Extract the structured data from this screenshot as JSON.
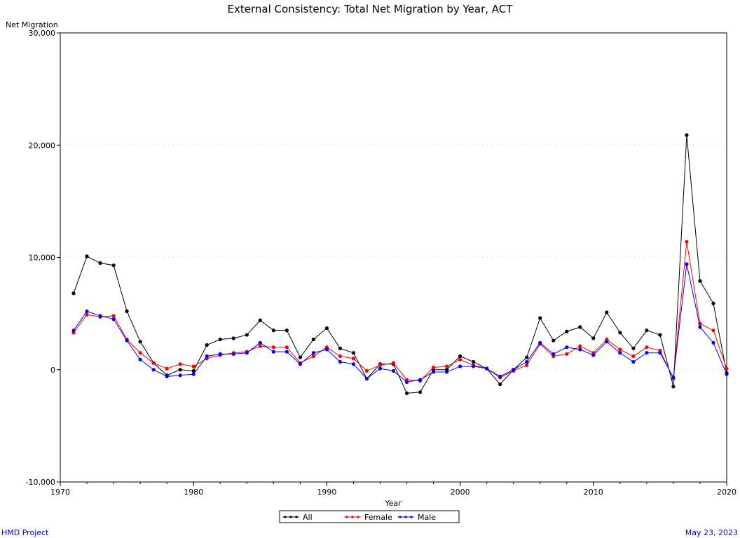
{
  "chart_data": {
    "type": "line",
    "title": "External Consistency: Total Net Migration by Year, ACT",
    "xlabel": "Year",
    "ylabel": "Net Migration",
    "xlim": [
      1970,
      2020
    ],
    "ylim": [
      -10000,
      30000
    ],
    "xticks": [
      1970,
      1980,
      1990,
      2000,
      2010,
      2020
    ],
    "xtick_labels": [
      "1970",
      "1980",
      "1990",
      "2000",
      "2010",
      "2020"
    ],
    "yticks": [
      -10000,
      0,
      10000,
      20000,
      30000
    ],
    "ytick_labels": [
      "-10,000",
      "0",
      "10,000",
      "20,000",
      "30,000"
    ],
    "grid": "dotted horizontal at major y ticks",
    "legend_position": "bottom-center",
    "x": [
      1971,
      1972,
      1973,
      1974,
      1975,
      1976,
      1977,
      1978,
      1979,
      1980,
      1981,
      1982,
      1983,
      1984,
      1985,
      1986,
      1987,
      1988,
      1989,
      1990,
      1991,
      1992,
      1993,
      1994,
      1995,
      1996,
      1997,
      1998,
      1999,
      2000,
      2001,
      2002,
      2003,
      2004,
      2005,
      2006,
      2007,
      2008,
      2009,
      2010,
      2011,
      2012,
      2013,
      2014,
      2015,
      2016,
      2017,
      2018,
      2019,
      2020
    ],
    "series": [
      {
        "name": "All",
        "color": "#000000",
        "values": [
          6800,
          10100,
          9500,
          9300,
          5200,
          2500,
          600,
          -500,
          0,
          -100,
          2200,
          2700,
          2800,
          3100,
          4400,
          3500,
          3500,
          1100,
          2700,
          3700,
          1900,
          1500,
          -800,
          500,
          500,
          -2100,
          -2000,
          0,
          0,
          1200,
          700,
          100,
          -1300,
          0,
          1100,
          4600,
          2600,
          3400,
          3800,
          2800,
          5100,
          3300,
          1900,
          3500,
          3100,
          -1500,
          20900,
          7900,
          5900,
          -300
        ]
      },
      {
        "name": "Female",
        "color": "#ff0000",
        "values": [
          3300,
          4900,
          4700,
          4800,
          2700,
          1500,
          600,
          100,
          500,
          300,
          1000,
          1300,
          1500,
          1600,
          2100,
          2000,
          2000,
          600,
          1200,
          2000,
          1200,
          1000,
          -100,
          400,
          600,
          -900,
          -1000,
          200,
          300,
          900,
          400,
          100,
          -700,
          -100,
          400,
          2300,
          1200,
          1400,
          2100,
          1500,
          2700,
          1800,
          1200,
          2000,
          1700,
          -800,
          11400,
          4100,
          3500,
          100
        ]
      },
      {
        "name": "Male",
        "color": "#0000ff",
        "values": [
          3500,
          5200,
          4800,
          4500,
          2600,
          900,
          0,
          -600,
          -500,
          -400,
          1200,
          1400,
          1400,
          1500,
          2400,
          1600,
          1600,
          500,
          1500,
          1800,
          700,
          500,
          -800,
          100,
          -100,
          -1100,
          -900,
          -200,
          -200,
          300,
          300,
          100,
          -600,
          0,
          700,
          2400,
          1400,
          2000,
          1800,
          1300,
          2500,
          1500,
          700,
          1500,
          1500,
          -700,
          9400,
          3800,
          2400,
          -400
        ]
      }
    ],
    "footer_left": "HMD Project",
    "footer_right": "May 23, 2023"
  }
}
